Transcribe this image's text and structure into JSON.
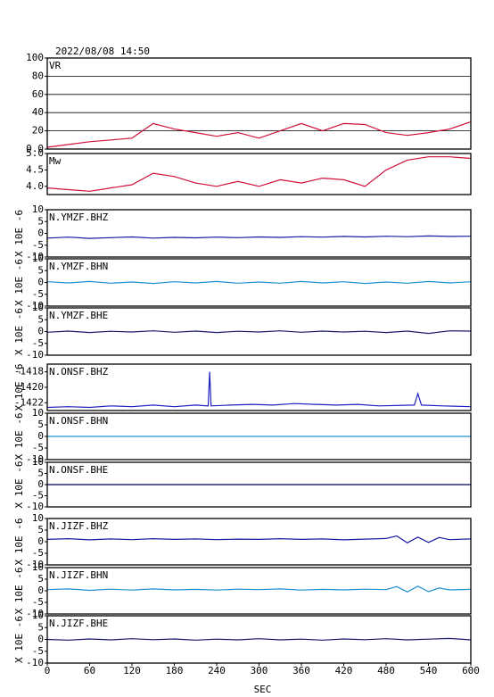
{
  "header": {
    "title": "2022/08/08 14:50"
  },
  "chart_data": [
    {
      "type": "line",
      "label": "VR",
      "color": "#d0103a",
      "grid": true,
      "x": [
        0,
        30,
        60,
        90,
        120,
        150,
        180,
        210,
        240,
        270,
        300,
        330,
        360,
        390,
        420,
        450,
        480,
        510,
        540,
        570,
        600
      ],
      "values": [
        2,
        5,
        8,
        10,
        12,
        28,
        22,
        18,
        14,
        18,
        12,
        20,
        28,
        20,
        28,
        27,
        18,
        15,
        18,
        22,
        30
      ],
      "xlim": [
        0,
        600
      ],
      "ylim": [
        0,
        100
      ],
      "yticks": [
        {
          "value": 0,
          "label": "0.0"
        },
        20,
        40,
        60,
        80,
        100
      ]
    },
    {
      "type": "line",
      "label": "Mw",
      "color": "#d0103a",
      "grid": false,
      "x": [
        0,
        30,
        60,
        90,
        120,
        150,
        180,
        210,
        240,
        270,
        300,
        330,
        360,
        390,
        420,
        450,
        480,
        510,
        540,
        570,
        600
      ],
      "values": [
        3.95,
        3.9,
        3.85,
        3.95,
        4.05,
        4.4,
        4.3,
        4.1,
        4.0,
        4.15,
        4.0,
        4.2,
        4.1,
        4.25,
        4.2,
        4.0,
        4.5,
        4.8,
        4.9,
        4.9,
        4.85
      ],
      "xlim": [
        0,
        600
      ],
      "ylim": [
        3.75,
        5.0
      ],
      "yticks": [
        {
          "value": 4,
          "label": "4.0"
        },
        4.5,
        {
          "value": 5,
          "label": "5.0"
        }
      ]
    },
    {
      "type": "line",
      "label": "N.YMZF.BHZ",
      "ylabel": "X 10E -6",
      "color": "#1a1aa0",
      "x": [
        0,
        30,
        60,
        90,
        120,
        150,
        180,
        210,
        240,
        270,
        300,
        330,
        360,
        390,
        420,
        450,
        480,
        510,
        540,
        570,
        600
      ],
      "values": [
        -2,
        -1.6,
        -2.1,
        -1.8,
        -1.5,
        -2,
        -1.7,
        -1.9,
        -1.6,
        -1.8,
        -1.5,
        -1.7,
        -1.4,
        -1.6,
        -1.3,
        -1.5,
        -1.2,
        -1.4,
        -1.1,
        -1.3,
        -1.2
      ],
      "xlim": [
        0,
        600
      ],
      "ylim": [
        -10,
        10
      ],
      "yticks": [
        -10,
        -5,
        0,
        5,
        10
      ]
    },
    {
      "type": "line",
      "label": "N.YMZF.BHN",
      "ylabel": "X 10E -6",
      "color": "#1e90d0",
      "x": [
        0,
        30,
        60,
        90,
        120,
        150,
        180,
        210,
        240,
        270,
        300,
        330,
        360,
        390,
        420,
        450,
        480,
        510,
        540,
        570,
        600
      ],
      "values": [
        0.3,
        -0.2,
        0.4,
        -0.3,
        0.2,
        -0.4,
        0.3,
        -0.2,
        0.4,
        -0.3,
        0.2,
        -0.3,
        0.4,
        -0.2,
        0.3,
        -0.4,
        0.2,
        -0.3,
        0.4,
        -0.2,
        0.3
      ],
      "xlim": [
        0,
        600
      ],
      "ylim": [
        -10,
        10
      ],
      "yticks": [
        -10,
        -5,
        0,
        5,
        10
      ]
    },
    {
      "type": "line",
      "label": "N.YMZF.BHE",
      "ylabel": "X 10E -6",
      "color": "#1a1a6a",
      "x": [
        0,
        30,
        60,
        90,
        120,
        150,
        180,
        210,
        240,
        270,
        300,
        330,
        360,
        390,
        420,
        450,
        480,
        510,
        540,
        570,
        600
      ],
      "values": [
        -0.3,
        0.2,
        -0.4,
        0.1,
        -0.2,
        0.3,
        -0.3,
        0.2,
        -0.4,
        0.1,
        -0.2,
        0.3,
        -0.3,
        0.2,
        -0.2,
        0.1,
        -0.4,
        0.2,
        -0.8,
        0.3,
        0.2
      ],
      "xlim": [
        0,
        600
      ],
      "ylim": [
        -10,
        10
      ],
      "yticks": [
        -10,
        -5,
        0,
        5,
        10
      ]
    },
    {
      "type": "line",
      "label": "N.ONSF.BHZ",
      "ylabel": "X 10E -6",
      "color": "#2020c0",
      "x": [
        0,
        30,
        60,
        90,
        120,
        150,
        180,
        210,
        228,
        230,
        232,
        260,
        290,
        320,
        350,
        380,
        410,
        440,
        470,
        520,
        525,
        530,
        560,
        600
      ],
      "values": [
        -1422.6,
        -1422.5,
        -1422.6,
        -1422.4,
        -1422.5,
        -1422.3,
        -1422.5,
        -1422.3,
        -1422.4,
        -1418,
        -1422.4,
        -1422.3,
        -1422.2,
        -1422.3,
        -1422.1,
        -1422.2,
        -1422.3,
        -1422.2,
        -1422.4,
        -1422.3,
        -1420.8,
        -1422.3,
        -1422.4,
        -1422.5
      ],
      "xlim": [
        0,
        600
      ],
      "ylim": [
        -1423,
        -1417
      ],
      "yticks": [
        -1422,
        -1420,
        -1418
      ]
    },
    {
      "type": "line",
      "label": "N.ONSF.BHN",
      "ylabel": "X 10E -6",
      "color": "#1e90d0",
      "x": [
        0,
        600
      ],
      "values": [
        0,
        0
      ],
      "xlim": [
        0,
        600
      ],
      "ylim": [
        -10,
        10
      ],
      "yticks": [
        -10,
        -5,
        0,
        5,
        10
      ]
    },
    {
      "type": "line",
      "label": "N.ONSF.BHE",
      "ylabel": "X 10E -6",
      "color": "#000050",
      "x": [
        0,
        600
      ],
      "values": [
        0,
        0
      ],
      "xlim": [
        0,
        600
      ],
      "ylim": [
        -10,
        10
      ],
      "yticks": [
        -10,
        -5,
        0,
        5,
        10
      ]
    },
    {
      "type": "line",
      "label": "N.JIZF.BHZ",
      "ylabel": "X 10E -6",
      "color": "#1a1aa0",
      "x": [
        0,
        30,
        60,
        90,
        120,
        150,
        180,
        210,
        240,
        270,
        300,
        330,
        360,
        390,
        420,
        450,
        480,
        495,
        510,
        525,
        540,
        555,
        570,
        600
      ],
      "values": [
        1,
        1.3,
        0.8,
        1.2,
        0.9,
        1.3,
        1,
        1.2,
        0.9,
        1.1,
        1,
        1.3,
        1,
        1.2,
        0.8,
        1.1,
        1.4,
        2.5,
        -0.5,
        2,
        -0.3,
        1.8,
        0.9,
        1.2
      ],
      "xlim": [
        0,
        600
      ],
      "ylim": [
        -10,
        10
      ],
      "yticks": [
        -10,
        -5,
        0,
        5,
        10
      ]
    },
    {
      "type": "line",
      "label": "N.JIZF.BHN",
      "ylabel": "X 10E -6",
      "color": "#1e90d0",
      "x": [
        0,
        30,
        60,
        90,
        120,
        150,
        180,
        210,
        240,
        270,
        300,
        330,
        360,
        390,
        420,
        450,
        480,
        495,
        510,
        525,
        540,
        555,
        570,
        600
      ],
      "values": [
        0.5,
        0.8,
        0.2,
        0.7,
        0.3,
        0.8,
        0.4,
        0.6,
        0.3,
        0.7,
        0.5,
        0.8,
        0.3,
        0.6,
        0.4,
        0.7,
        0.5,
        1.8,
        -0.5,
        2,
        -0.4,
        1.2,
        0.4,
        0.6
      ],
      "xlim": [
        0,
        600
      ],
      "ylim": [
        -10,
        10
      ],
      "yticks": [
        -10,
        -5,
        0,
        5,
        10
      ]
    },
    {
      "type": "line",
      "label": "N.JIZF.BHE",
      "ylabel": "X 10E -6",
      "xlabel": "SEC",
      "color": "#1a1a6a",
      "x": [
        0,
        30,
        60,
        90,
        120,
        150,
        180,
        210,
        240,
        270,
        300,
        330,
        360,
        390,
        420,
        450,
        480,
        510,
        540,
        570,
        600
      ],
      "values": [
        0,
        -0.3,
        0.2,
        -0.2,
        0.3,
        -0.1,
        0.2,
        -0.3,
        0.1,
        -0.2,
        0.3,
        -0.2,
        0.1,
        -0.3,
        0.2,
        -0.1,
        0.3,
        -0.2,
        0.1,
        0.4,
        -0.2
      ],
      "xlim": [
        0,
        600
      ],
      "ylim": [
        -10,
        10
      ],
      "yticks": [
        -10,
        -5,
        0,
        5,
        10
      ],
      "xticks": [
        0,
        60,
        120,
        180,
        240,
        300,
        360,
        420,
        480,
        540,
        600
      ]
    }
  ]
}
